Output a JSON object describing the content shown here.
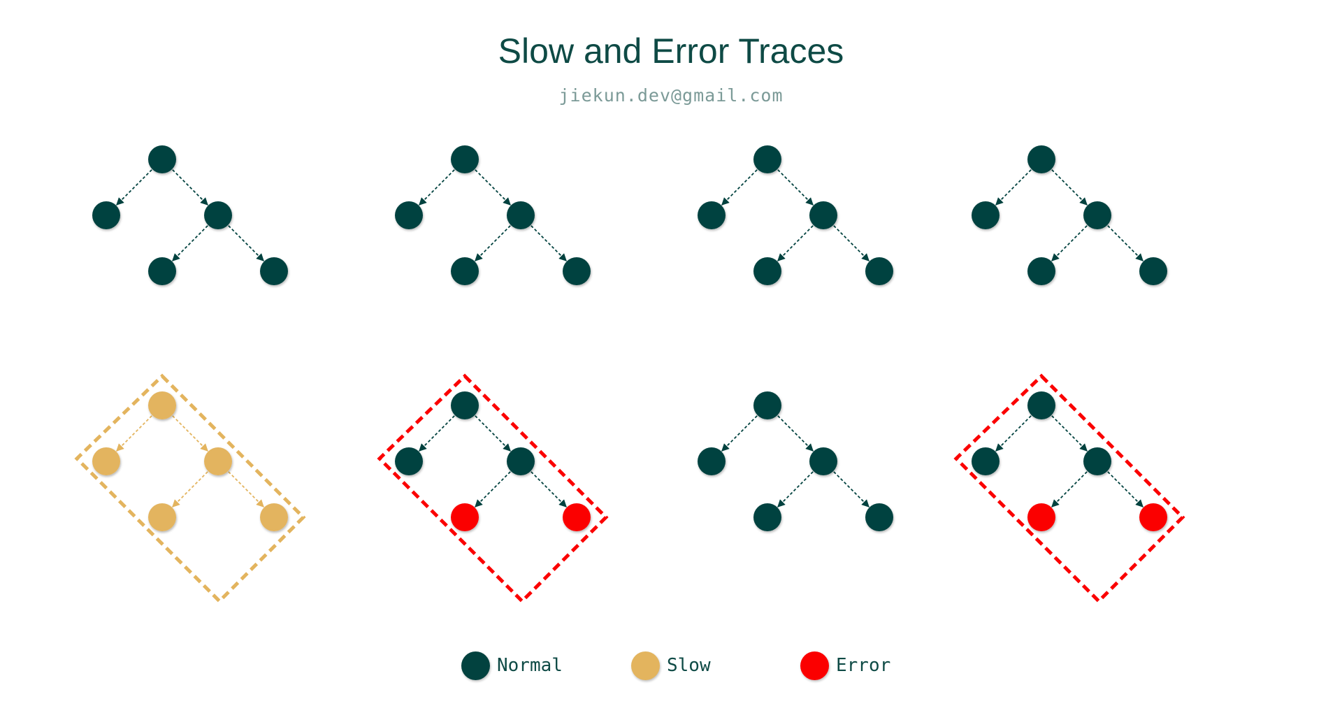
{
  "title": "Slow and Error Traces",
  "subtitle": "jiekun.dev@gmail.com",
  "colors": {
    "normal": "#02423f",
    "slow": "#e3b45e",
    "error": "#fb0000",
    "text": "#0e4a45"
  },
  "legend": [
    {
      "key": "normal",
      "label": "Normal"
    },
    {
      "key": "slow",
      "label": "Slow"
    },
    {
      "key": "error",
      "label": "Error"
    }
  ],
  "traces": [
    {
      "row": 1,
      "col": 1,
      "nodes": [
        "normal",
        "normal",
        "normal",
        "normal",
        "normal"
      ],
      "highlight": "none"
    },
    {
      "row": 1,
      "col": 2,
      "nodes": [
        "normal",
        "normal",
        "normal",
        "normal",
        "normal"
      ],
      "highlight": "none"
    },
    {
      "row": 1,
      "col": 3,
      "nodes": [
        "normal",
        "normal",
        "normal",
        "normal",
        "normal"
      ],
      "highlight": "none"
    },
    {
      "row": 1,
      "col": 4,
      "nodes": [
        "normal",
        "normal",
        "normal",
        "normal",
        "normal"
      ],
      "highlight": "none"
    },
    {
      "row": 2,
      "col": 1,
      "nodes": [
        "slow",
        "slow",
        "slow",
        "slow",
        "slow"
      ],
      "highlight": "slow"
    },
    {
      "row": 2,
      "col": 2,
      "nodes": [
        "normal",
        "normal",
        "normal",
        "error",
        "error"
      ],
      "highlight": "error"
    },
    {
      "row": 2,
      "col": 3,
      "nodes": [
        "normal",
        "normal",
        "normal",
        "normal",
        "normal"
      ],
      "highlight": "none"
    },
    {
      "row": 2,
      "col": 4,
      "nodes": [
        "normal",
        "normal",
        "normal",
        "error",
        "error"
      ],
      "highlight": "error"
    }
  ]
}
